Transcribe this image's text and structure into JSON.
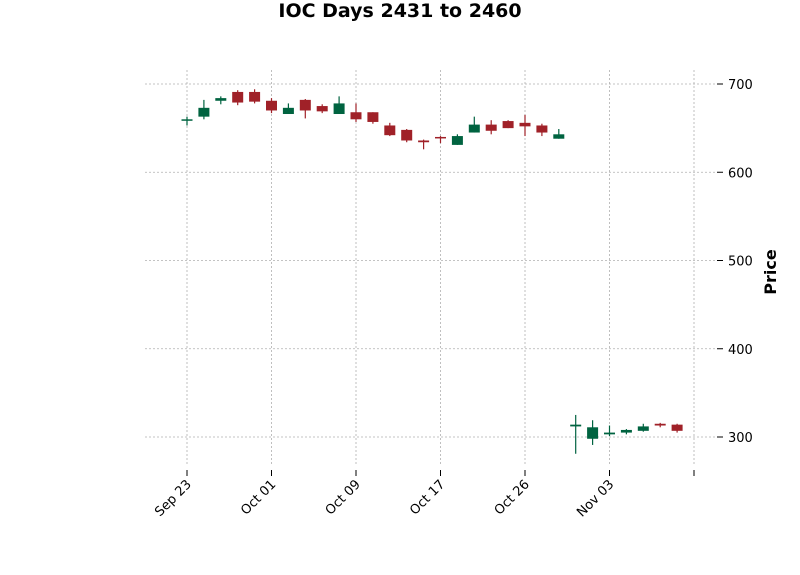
{
  "chart_data": {
    "type": "candlestick",
    "title": "IOC Days 2431 to 2460",
    "ylabel": "Price",
    "xlabel": "",
    "ylim": [
      262,
      716
    ],
    "yticks": [
      300,
      400,
      500,
      600,
      700
    ],
    "x_tick_labels": [
      {
        "index": 0,
        "label": "Sep 23"
      },
      {
        "index": 5,
        "label": "Oct 01"
      },
      {
        "index": 10,
        "label": "Oct 09"
      },
      {
        "index": 15,
        "label": "Oct 17"
      },
      {
        "index": 20,
        "label": "Oct 26"
      },
      {
        "index": 25,
        "label": "Nov 03"
      },
      {
        "index": 30,
        "label": ""
      }
    ],
    "grid": true,
    "up_color": "#006340",
    "down_color": "#a02128",
    "candles": [
      {
        "o": 659,
        "h": 663,
        "l": 653,
        "c": 660
      },
      {
        "o": 663,
        "h": 682,
        "l": 660,
        "c": 673
      },
      {
        "o": 681,
        "h": 686,
        "l": 677,
        "c": 684
      },
      {
        "o": 691,
        "h": 693,
        "l": 676,
        "c": 679
      },
      {
        "o": 691,
        "h": 694,
        "l": 678,
        "c": 680
      },
      {
        "o": 681,
        "h": 684,
        "l": 667,
        "c": 670
      },
      {
        "o": 666,
        "h": 678,
        "l": 666,
        "c": 673
      },
      {
        "o": 682,
        "h": 683,
        "l": 661,
        "c": 670
      },
      {
        "o": 675,
        "h": 677,
        "l": 667,
        "c": 669
      },
      {
        "o": 666,
        "h": 686,
        "l": 666,
        "c": 678
      },
      {
        "o": 668,
        "h": 678,
        "l": 657,
        "c": 660
      },
      {
        "o": 668,
        "h": 668,
        "l": 655,
        "c": 657
      },
      {
        "o": 653,
        "h": 656,
        "l": 641,
        "c": 642
      },
      {
        "o": 648,
        "h": 649,
        "l": 634,
        "c": 636
      },
      {
        "o": 636,
        "h": 637,
        "l": 626,
        "c": 634
      },
      {
        "o": 640,
        "h": 641,
        "l": 633,
        "c": 639
      },
      {
        "o": 631,
        "h": 643,
        "l": 631,
        "c": 641
      },
      {
        "o": 645,
        "h": 663,
        "l": 645,
        "c": 654
      },
      {
        "o": 654,
        "h": 659,
        "l": 643,
        "c": 647
      },
      {
        "o": 658,
        "h": 659,
        "l": 650,
        "c": 650
      },
      {
        "o": 656,
        "h": 665,
        "l": 641,
        "c": 652
      },
      {
        "o": 653,
        "h": 655,
        "l": 641,
        "c": 645
      },
      {
        "o": 638,
        "h": 649,
        "l": 638,
        "c": 643
      },
      {
        "o": 312,
        "h": 325,
        "l": 281,
        "c": 314
      },
      {
        "o": 298,
        "h": 319,
        "l": 291,
        "c": 311
      },
      {
        "o": 303,
        "h": 313,
        "l": 301,
        "c": 305
      },
      {
        "o": 305,
        "h": 309,
        "l": 303,
        "c": 308
      },
      {
        "o": 307,
        "h": 315,
        "l": 306,
        "c": 312
      },
      {
        "o": 315,
        "h": 316,
        "l": 311,
        "c": 313
      },
      {
        "o": 314,
        "h": 315,
        "l": 305,
        "c": 307
      }
    ]
  }
}
